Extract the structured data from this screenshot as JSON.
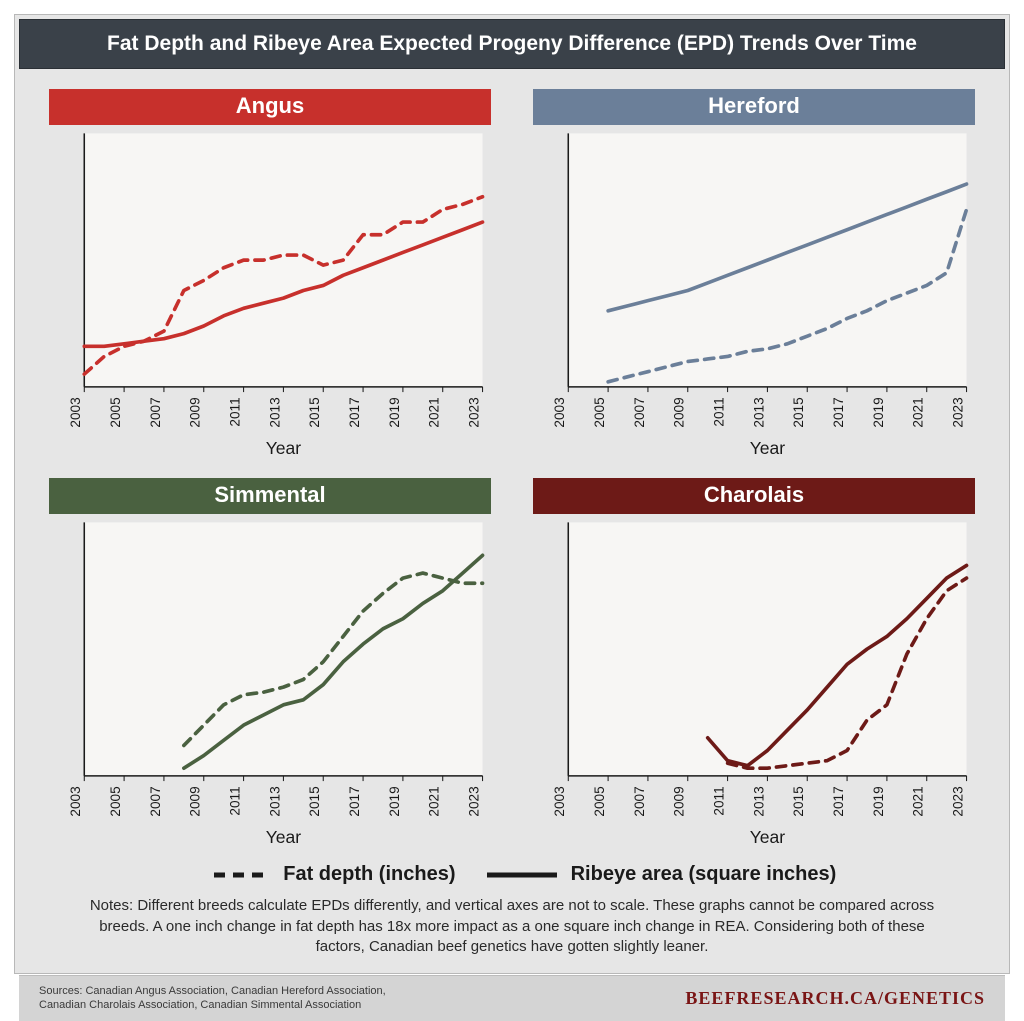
{
  "title": "Fat Depth and Ribeye Area Expected Progeny Difference (EPD) Trends Over Time",
  "x_axis_label": "Year",
  "x_ticks": [
    2003,
    2005,
    2007,
    2009,
    2011,
    2013,
    2015,
    2017,
    2019,
    2021,
    2023
  ],
  "legend": {
    "dashed": "Fat depth (inches)",
    "solid": "Ribeye area (square inches)"
  },
  "notes": "Notes: Different breeds calculate EPDs differently, and vertical axes are not to scale. These graphs cannot be compared across breeds. A one inch change in fat depth has 18x more impact as a one square inch change in REA. Considering both of these factors, Canadian beef genetics have gotten slightly leaner.",
  "sources_line1": "Sources:  Canadian Angus Association, Canadian Hereford Association,",
  "sources_line2": "Canadian Charolais Association, Canadian Simmental Association",
  "brand": "BEEFRESEARCH.CA/GENETICS",
  "brand_color": "#7a1515",
  "panels": [
    {
      "name": "Angus",
      "title_bg": "#c7302c",
      "line_color": "#c7302c",
      "xlim": [
        2003,
        2023
      ],
      "ylim": [
        0,
        100
      ],
      "fat_start_year": 2003,
      "fat": [
        5,
        12,
        16,
        18,
        22,
        38,
        42,
        47,
        50,
        50,
        52,
        52,
        48,
        50,
        60,
        60,
        65,
        65,
        70,
        72,
        75
      ],
      "ribeye_start_year": 2003,
      "ribeye": [
        16,
        16,
        17,
        18,
        19,
        21,
        24,
        28,
        31,
        33,
        35,
        38,
        40,
        44,
        47,
        50,
        53,
        56,
        59,
        62,
        65
      ]
    },
    {
      "name": "Hereford",
      "title_bg": "#6b7f99",
      "line_color": "#6b7f99",
      "xlim": [
        2003,
        2023
      ],
      "ylim": [
        0,
        100
      ],
      "fat_start_year": 2005,
      "fat": [
        2,
        4,
        6,
        8,
        10,
        11,
        12,
        14,
        15,
        17,
        20,
        23,
        27,
        30,
        34,
        37,
        40,
        45,
        70
      ],
      "ribeye_start_year": 2005,
      "ribeye": [
        30,
        32,
        34,
        36,
        38,
        41,
        44,
        47,
        50,
        53,
        56,
        59,
        62,
        65,
        68,
        71,
        74,
        77,
        80
      ]
    },
    {
      "name": "Simmental",
      "title_bg": "#4a6140",
      "line_color": "#4a6140",
      "xlim": [
        2003,
        2023
      ],
      "ylim": [
        0,
        100
      ],
      "fat_start_year": 2008,
      "fat": [
        12,
        20,
        28,
        32,
        33,
        35,
        38,
        45,
        55,
        65,
        72,
        78,
        80,
        78,
        76,
        76
      ],
      "ribeye_start_year": 2008,
      "ribeye": [
        3,
        8,
        14,
        20,
        24,
        28,
        30,
        36,
        45,
        52,
        58,
        62,
        68,
        73,
        80,
        87
      ]
    },
    {
      "name": "Charolais",
      "title_bg": "#6d1a17",
      "line_color": "#6d1a17",
      "xlim": [
        2003,
        2023
      ],
      "ylim": [
        0,
        100
      ],
      "fat_start_year": 2011,
      "fat": [
        5,
        3,
        3,
        4,
        5,
        6,
        10,
        22,
        28,
        48,
        62,
        73,
        78
      ],
      "ribeye_start_year": 2010,
      "ribeye": [
        15,
        6,
        4,
        10,
        18,
        26,
        35,
        44,
        50,
        55,
        62,
        70,
        78,
        83
      ]
    }
  ],
  "chart_style": {
    "plot_bg": "#f7f6f4",
    "axis_color": "#1a1a1a",
    "line_width": 3.5,
    "dash_pattern": "9 7"
  }
}
